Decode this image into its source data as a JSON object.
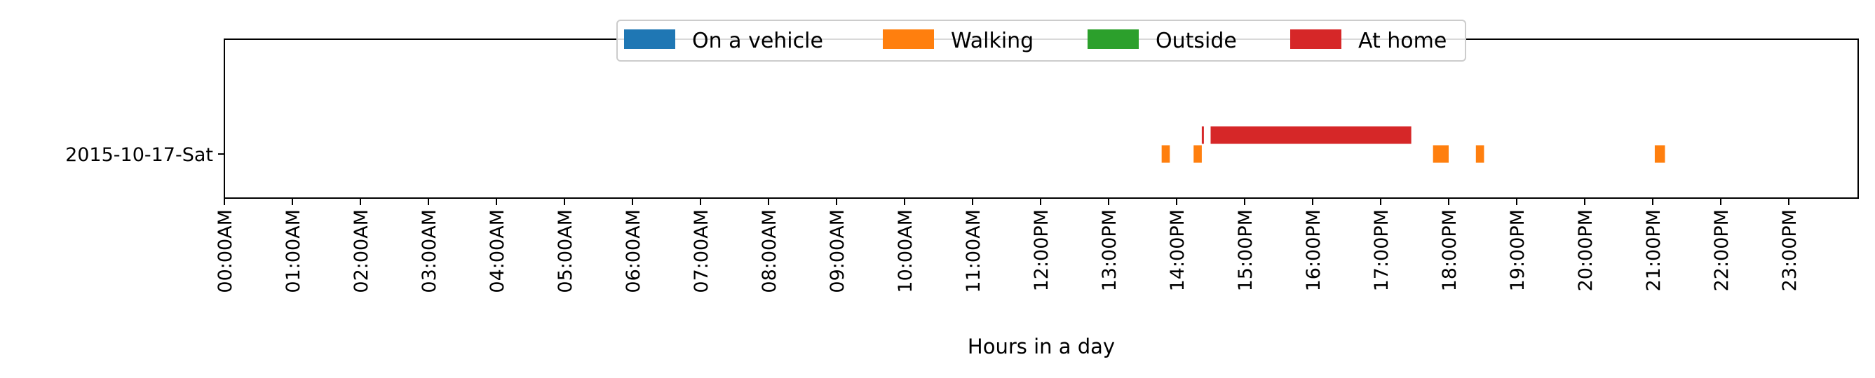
{
  "chart_data": {
    "type": "timeline",
    "title": "",
    "xlabel": "Hours in a day",
    "ylabel": "",
    "xlim": [
      0,
      24
    ],
    "x_ticks": [
      {
        "value": 0,
        "label": "00:00AM"
      },
      {
        "value": 1,
        "label": "01:00AM"
      },
      {
        "value": 2,
        "label": "02:00AM"
      },
      {
        "value": 3,
        "label": "03:00AM"
      },
      {
        "value": 4,
        "label": "04:00AM"
      },
      {
        "value": 5,
        "label": "05:00AM"
      },
      {
        "value": 6,
        "label": "06:00AM"
      },
      {
        "value": 7,
        "label": "07:00AM"
      },
      {
        "value": 8,
        "label": "08:00AM"
      },
      {
        "value": 9,
        "label": "09:00AM"
      },
      {
        "value": 10,
        "label": "10:00AM"
      },
      {
        "value": 11,
        "label": "11:00AM"
      },
      {
        "value": 12,
        "label": "12:00PM"
      },
      {
        "value": 13,
        "label": "13:00PM"
      },
      {
        "value": 14,
        "label": "14:00PM"
      },
      {
        "value": 15,
        "label": "15:00PM"
      },
      {
        "value": 16,
        "label": "16:00PM"
      },
      {
        "value": 17,
        "label": "17:00PM"
      },
      {
        "value": 18,
        "label": "18:00PM"
      },
      {
        "value": 19,
        "label": "19:00PM"
      },
      {
        "value": 20,
        "label": "20:00PM"
      },
      {
        "value": 21,
        "label": "21:00PM"
      },
      {
        "value": 22,
        "label": "22:00PM"
      },
      {
        "value": 23,
        "label": "23:00PM"
      }
    ],
    "categories": [
      "2015-10-17-Sat"
    ],
    "legend_position": "top-center",
    "series": [
      {
        "name": "On a vehicle",
        "color": "#1f77b4",
        "lane": 0,
        "intervals": []
      },
      {
        "name": "Walking",
        "color": "#ff7f0e",
        "lane": 0,
        "intervals": [
          [
            13.78,
            13.9
          ],
          [
            14.25,
            14.37
          ],
          [
            17.77,
            18.0
          ],
          [
            18.4,
            18.52
          ],
          [
            21.03,
            21.18
          ]
        ]
      },
      {
        "name": "Outside",
        "color": "#2ca02c",
        "lane": 1,
        "intervals": []
      },
      {
        "name": "At home",
        "color": "#d62728",
        "lane": 1,
        "intervals": [
          [
            14.37,
            14.4
          ],
          [
            14.5,
            17.45
          ]
        ]
      }
    ]
  }
}
